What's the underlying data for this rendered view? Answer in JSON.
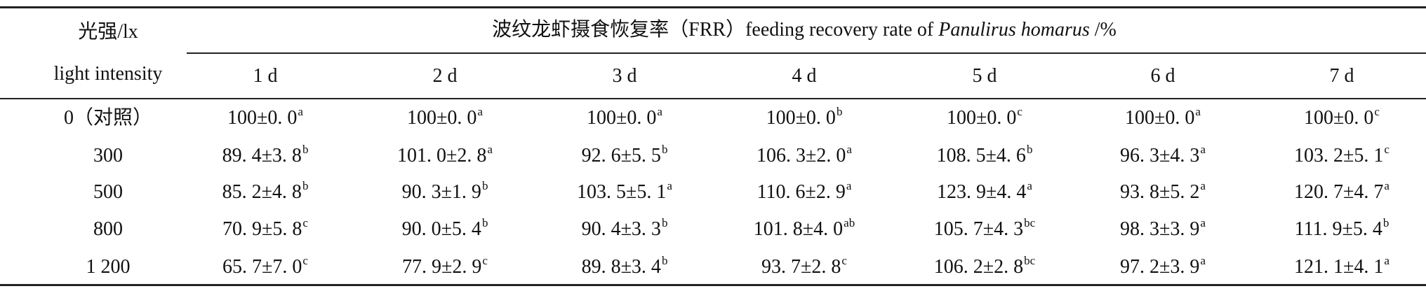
{
  "table": {
    "row_header": {
      "zh": "光强/lx",
      "en": "light intensity"
    },
    "column_header": {
      "lead": "波纹龙虾摄食恢复率（FRR）feeding recovery rate of ",
      "species": "Panulirus homarus",
      "unit": " /%"
    },
    "days": [
      "1 d",
      "2 d",
      "3 d",
      "4 d",
      "5 d",
      "6 d",
      "7 d"
    ],
    "rows": [
      {
        "label": "0（对照）",
        "cells": [
          {
            "text": "100±0. 0",
            "sup": "a"
          },
          {
            "text": "100±0. 0",
            "sup": "a"
          },
          {
            "text": "100±0. 0",
            "sup": "a"
          },
          {
            "text": "100±0. 0",
            "sup": "b"
          },
          {
            "text": "100±0. 0",
            "sup": "c"
          },
          {
            "text": "100±0. 0",
            "sup": "a"
          },
          {
            "text": "100±0. 0",
            "sup": "c"
          }
        ]
      },
      {
        "label": "300",
        "cells": [
          {
            "text": "89. 4±3. 8",
            "sup": "b"
          },
          {
            "text": "101. 0±2. 8",
            "sup": "a"
          },
          {
            "text": "92. 6±5. 5",
            "sup": "b"
          },
          {
            "text": "106. 3±2. 0",
            "sup": "a"
          },
          {
            "text": "108. 5±4. 6",
            "sup": "b"
          },
          {
            "text": "96. 3±4. 3",
            "sup": "a"
          },
          {
            "text": "103. 2±5. 1",
            "sup": "c"
          }
        ]
      },
      {
        "label": "500",
        "cells": [
          {
            "text": "85. 2±4. 8",
            "sup": "b"
          },
          {
            "text": "90. 3±1. 9",
            "sup": "b"
          },
          {
            "text": "103. 5±5. 1",
            "sup": "a"
          },
          {
            "text": "110. 6±2. 9",
            "sup": "a"
          },
          {
            "text": "123. 9±4. 4",
            "sup": "a"
          },
          {
            "text": "93. 8±5. 2",
            "sup": "a"
          },
          {
            "text": "120. 7±4. 7",
            "sup": "a"
          }
        ]
      },
      {
        "label": "800",
        "cells": [
          {
            "text": "70. 9±5. 8",
            "sup": "c"
          },
          {
            "text": "90. 0±5. 4",
            "sup": "b"
          },
          {
            "text": "90. 4±3. 3",
            "sup": "b"
          },
          {
            "text": "101. 8±4. 0",
            "sup": "ab"
          },
          {
            "text": "105. 7±4. 3",
            "sup": "bc"
          },
          {
            "text": "98. 3±3. 9",
            "sup": "a"
          },
          {
            "text": "111. 9±5. 4",
            "sup": "b"
          }
        ]
      },
      {
        "label": "1 200",
        "cells": [
          {
            "text": "65. 7±7. 0",
            "sup": "c"
          },
          {
            "text": "77. 9±2. 9",
            "sup": "c"
          },
          {
            "text": "89. 8±3. 4",
            "sup": "b"
          },
          {
            "text": "93. 7±2. 8",
            "sup": "c"
          },
          {
            "text": "106. 2±2. 8",
            "sup": "bc"
          },
          {
            "text": "97. 2±3. 9",
            "sup": "a"
          },
          {
            "text": "121. 1±4. 1",
            "sup": "a"
          }
        ]
      }
    ]
  }
}
